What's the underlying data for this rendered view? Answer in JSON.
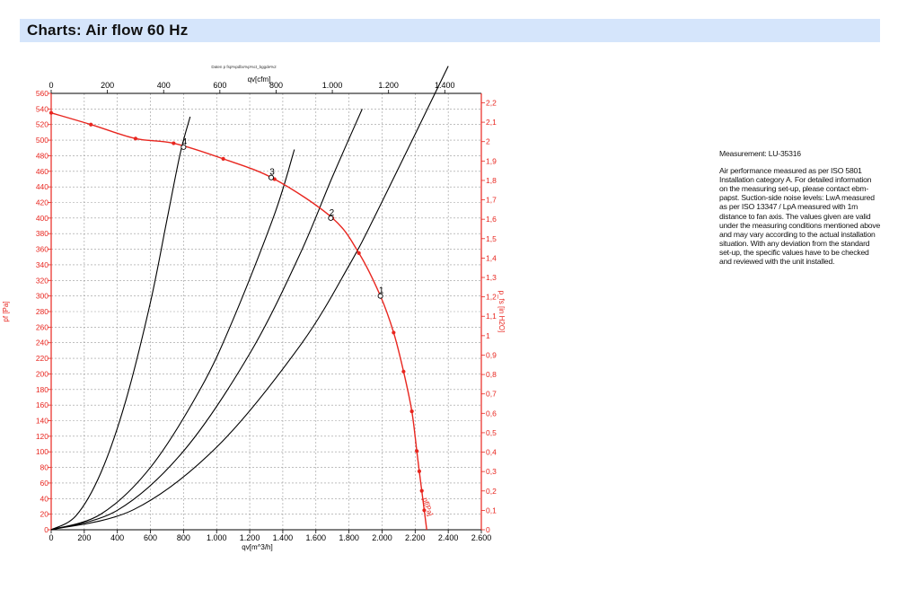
{
  "header": {
    "title": "Charts: Air flow 60 Hz"
  },
  "side_panel": {
    "measurement": "Measurement: LU-35316",
    "description": "Air performance measured as per ISO 5801 Installation category A. For detailed information on the measuring set-up, please contact ebm-papst. Suction-side noise levels: LwA measured as per ISO 13347 / LpA measured with 1m distance to fan axis. The values given are valid under the measuring conditions mentioned above and may vary according to the actual installation situation. With any deviation from the standard set-up, the specific values have to be checked and reviewed with the unit installed."
  },
  "chart_data": {
    "type": "line",
    "small_caption": "Daten p fsp%pdbx%p%ct_bggde%2",
    "x_bottom": {
      "label": "qv[m^3/h]",
      "min": 0,
      "max": 2600,
      "step": 200,
      "ticks": [
        "0",
        "200",
        "400",
        "600",
        "800",
        "1.000",
        "1.200",
        "1.400",
        "1.600",
        "1.800",
        "2.000",
        "2.200",
        "2.400",
        "2.600"
      ]
    },
    "x_top": {
      "label": "qv[cfm]",
      "min": 0,
      "max": 1530,
      "step": 200,
      "ticks": [
        "0",
        "200",
        "400",
        "600",
        "800",
        "1.000",
        "1.200",
        "1.400"
      ]
    },
    "y_left": {
      "label": "pf [Pa]",
      "min": 0,
      "max": 560,
      "step": 20,
      "color": "#e8261f",
      "ticks": [
        "0",
        "20",
        "40",
        "60",
        "80",
        "100",
        "120",
        "140",
        "160",
        "180",
        "200",
        "220",
        "240",
        "260",
        "280",
        "300",
        "320",
        "340",
        "360",
        "380",
        "400",
        "420",
        "440",
        "460",
        "480",
        "500",
        "520",
        "540",
        "560"
      ]
    },
    "y_right": {
      "label": "p_fs [in H2O]",
      "min": 0,
      "max": 2.2485,
      "step": 0.1,
      "color": "#e8261f",
      "ticks": [
        "0",
        "0,1",
        "0,2",
        "0,3",
        "0,4",
        "0,5",
        "0,6",
        "0,7",
        "0,8",
        "0,9",
        "1",
        "1,1",
        "1,2",
        "1,3",
        "1,4",
        "1,5",
        "1,6",
        "1,7",
        "1,8",
        "1,9",
        "2",
        "2,1",
        "2,2"
      ]
    },
    "grid": true,
    "series": [
      {
        "name": "pf[Pa]",
        "color": "#e8261f",
        "markers": true,
        "x": [
          0,
          240,
          510,
          740,
          1040,
          1350,
          1700,
          1860,
          1990,
          2070,
          2130,
          2180,
          2210,
          2225,
          2240,
          2255,
          2270
        ],
        "y": [
          535,
          520,
          502,
          496,
          476,
          450,
          400,
          355,
          300,
          253,
          203,
          152,
          101,
          75,
          50,
          25,
          0
        ]
      },
      {
        "name": "",
        "color": "#000000",
        "markers": false,
        "x": [
          0,
          150,
          300,
          450,
          600,
          700,
          780,
          840
        ],
        "y": [
          0,
          18,
          73,
          165,
          292,
          398,
          483,
          530
        ]
      },
      {
        "name": "",
        "color": "#000000",
        "markers": false,
        "x": [
          0,
          300,
          600,
          900,
          1100,
          1350,
          1470
        ],
        "y": [
          0,
          20,
          80,
          180,
          270,
          405,
          488
        ]
      },
      {
        "name": "",
        "color": "#000000",
        "markers": false,
        "x": [
          0,
          400,
          800,
          1200,
          1500,
          1700,
          1880
        ],
        "y": [
          0,
          25,
          101,
          226,
          352,
          453,
          540
        ]
      },
      {
        "name": "",
        "color": "#000000",
        "markers": false,
        "x": [
          0,
          500,
          1000,
          1500,
          1800,
          2000,
          2400
        ],
        "y": [
          0,
          26,
          106,
          235,
          339,
          421,
          595
        ]
      }
    ],
    "operating_points": [
      {
        "label": "4",
        "x": 800,
        "y": 491
      },
      {
        "label": "3",
        "x": 1330,
        "y": 452
      },
      {
        "label": "2",
        "x": 1690,
        "y": 400
      },
      {
        "label": "1",
        "x": 1990,
        "y": 300
      }
    ],
    "curve_label": "pf[Pa]"
  }
}
